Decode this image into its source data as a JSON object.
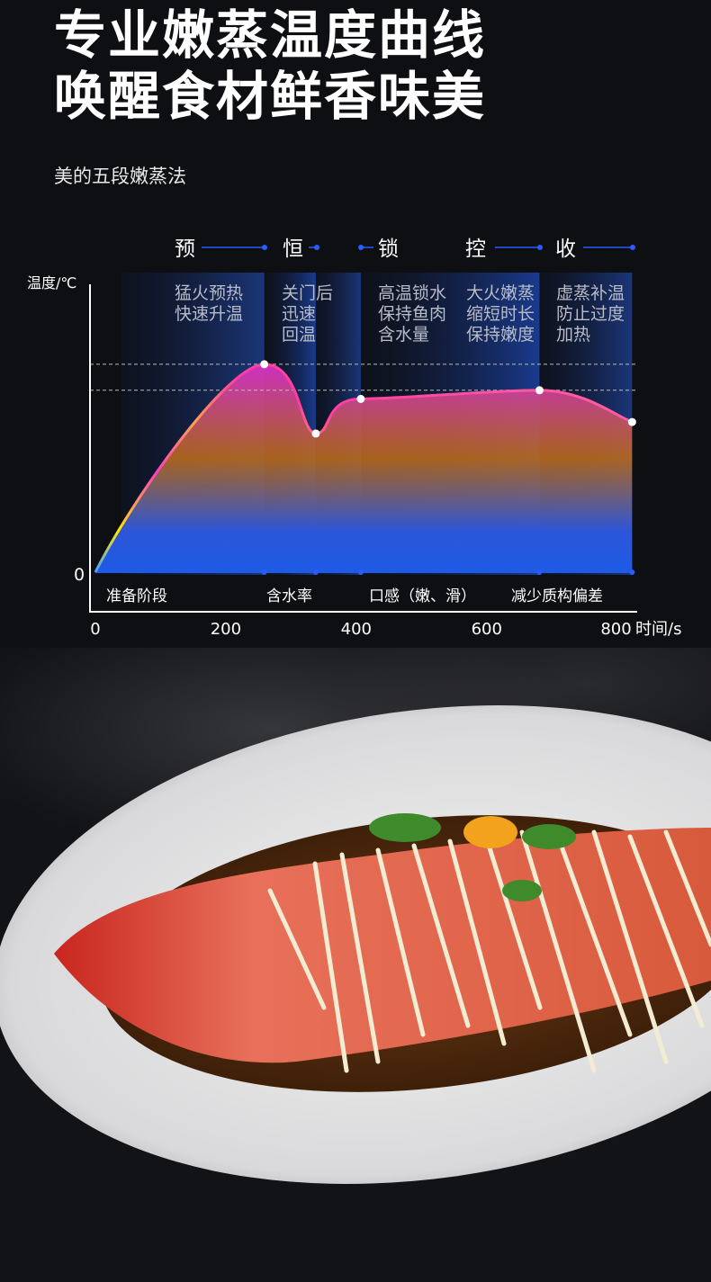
{
  "headline": {
    "line1": "专业嫩蒸温度曲线",
    "line2": "唤醒食材鲜香味美"
  },
  "subtitle": "美的五段嫩蒸法",
  "chart_data": {
    "type": "area",
    "ylabel": "温度/℃",
    "xlabel": "时间/s",
    "x_ticks": [
      "0",
      "200",
      "400",
      "600",
      "800"
    ],
    "y_ticks": [
      "0"
    ],
    "xlim": [
      0,
      830
    ],
    "ylim": [
      0,
      100
    ],
    "points": [
      {
        "x": 0,
        "y": 0
      },
      {
        "x": 259,
        "y": 72
      },
      {
        "x": 338,
        "y": 48
      },
      {
        "x": 407,
        "y": 60
      },
      {
        "x": 681,
        "y": 63
      },
      {
        "x": 823,
        "y": 52
      }
    ],
    "reference_lines_y": [
      72,
      63
    ],
    "stages": [
      {
        "name": "预",
        "desc": [
          "猛火预热",
          "快速升温"
        ],
        "x_end": 259
      },
      {
        "name": "恒",
        "desc": [
          "关门后",
          "迅速",
          "回温"
        ],
        "x_end": 338
      },
      {
        "name": "锁",
        "desc": [
          "高温锁水",
          "保持鱼肉",
          "含水量"
        ],
        "x_end": 407
      },
      {
        "name": "控",
        "desc": [
          "大火嫩蒸",
          "缩短时长",
          "保持嫩度"
        ],
        "x_end": 681
      },
      {
        "name": "收",
        "desc": [
          "虚蒸补温",
          "防止过度",
          "加热"
        ],
        "x_end": 823
      }
    ],
    "bottom_labels": [
      "准备阶段",
      "含水率",
      "口感（嫩、滑）",
      "减少质构偏差"
    ],
    "grid": false,
    "colors": {
      "line_start": "#ffe600",
      "line_peak": "#ff3cc8",
      "fill_bottom": "#1e5ae6",
      "accent_blue": "#2a5cff"
    }
  }
}
